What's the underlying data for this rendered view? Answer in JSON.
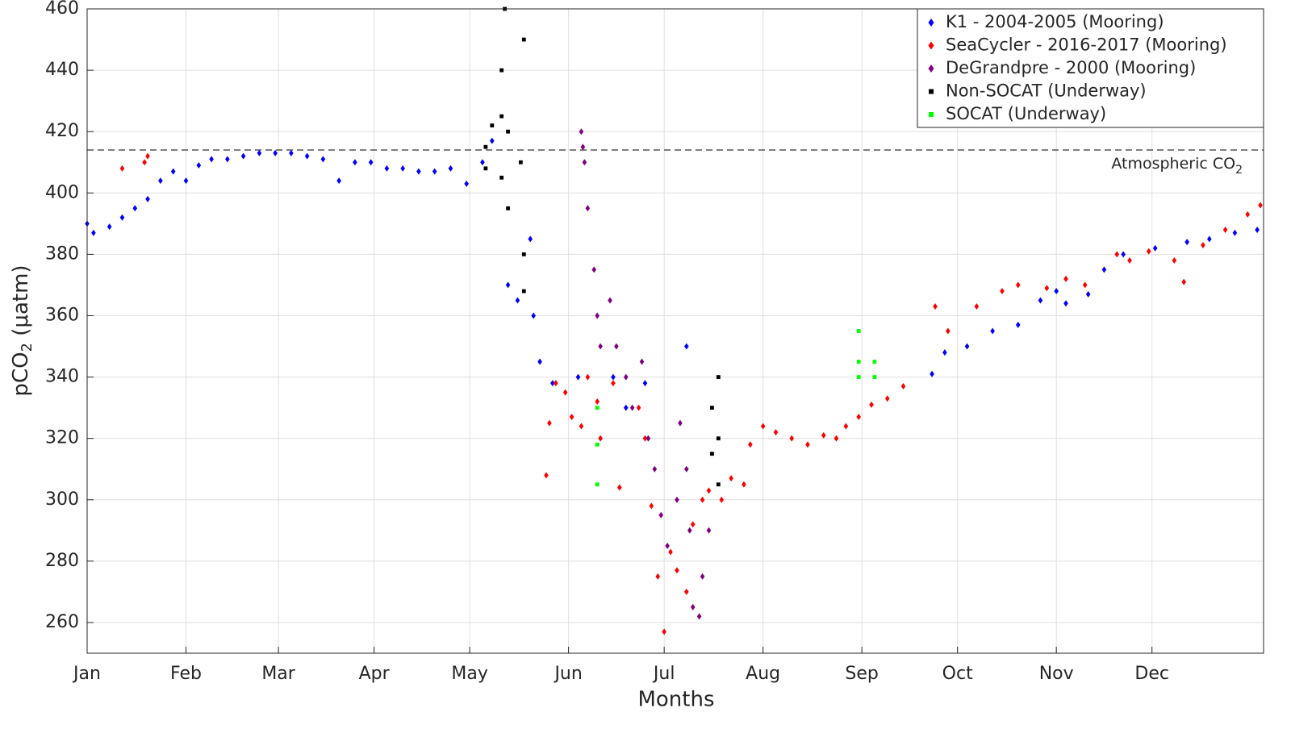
{
  "chart_data": {
    "type": "scatter",
    "x_label": "Months",
    "y_label": {
      "text": "pCO",
      "subscript": "2",
      "suffix": " (μatm)"
    },
    "xlim": [
      1,
      370
    ],
    "ylim": [
      250,
      460
    ],
    "xticks": [
      {
        "value": 1,
        "label": "Jan"
      },
      {
        "value": 32,
        "label": "Feb"
      },
      {
        "value": 61,
        "label": "Mar"
      },
      {
        "value": 91,
        "label": "Apr"
      },
      {
        "value": 121,
        "label": "May"
      },
      {
        "value": 152,
        "label": "Jun"
      },
      {
        "value": 182,
        "label": "Jul"
      },
      {
        "value": 213,
        "label": "Aug"
      },
      {
        "value": 244,
        "label": "Sep"
      },
      {
        "value": 274,
        "label": "Oct"
      },
      {
        "value": 305,
        "label": "Nov"
      },
      {
        "value": 335,
        "label": "Dec"
      }
    ],
    "yticks": [
      260,
      280,
      300,
      320,
      340,
      360,
      380,
      400,
      420,
      440,
      460
    ],
    "grid": true,
    "legend_position": "upper-right",
    "reference_line": {
      "value": 414,
      "text": "Atmospheric CO",
      "subscript": "2"
    },
    "series": [
      {
        "name": "K1 - 2004-2005 (Mooring)",
        "color": "#0000ff",
        "marker": "diamond",
        "x": [
          1,
          3,
          8,
          12,
          16,
          20,
          24,
          28,
          32,
          36,
          40,
          45,
          50,
          55,
          60,
          65,
          70,
          75,
          80,
          85,
          90,
          95,
          100,
          105,
          110,
          115,
          120,
          125,
          128,
          133,
          136,
          140,
          141,
          143,
          147,
          155,
          166,
          170,
          176,
          189,
          266,
          270,
          277,
          285,
          293,
          300,
          305,
          308,
          315,
          320,
          326,
          336,
          346,
          353,
          361,
          368
        ],
        "values": [
          390,
          387,
          389,
          392,
          395,
          398,
          404,
          407,
          404,
          409,
          411,
          411,
          412,
          413,
          413,
          413,
          412,
          411,
          404,
          410,
          410,
          408,
          408,
          407,
          407,
          408,
          403,
          410,
          417,
          370,
          365,
          385,
          360,
          345,
          338,
          340,
          340,
          330,
          338,
          350,
          341,
          348,
          350,
          355,
          357,
          365,
          368,
          364,
          367,
          375,
          380,
          382,
          384,
          385,
          387,
          388
        ]
      },
      {
        "name": "SeaCycler - 2016-2017 (Mooring)",
        "color": "#ff0000",
        "marker": "diamond",
        "x": [
          12,
          19,
          20,
          145,
          146,
          148,
          151,
          153,
          156,
          158,
          161,
          162,
          166,
          168,
          174,
          176,
          178,
          180,
          182,
          184,
          186,
          189,
          191,
          194,
          196,
          200,
          203,
          207,
          209,
          213,
          217,
          222,
          227,
          232,
          236,
          239,
          243,
          247,
          252,
          257,
          267,
          271,
          280,
          288,
          293,
          302,
          308,
          314,
          324,
          328,
          334,
          342,
          345,
          351,
          358,
          365,
          369
        ],
        "values": [
          408,
          410,
          412,
          308,
          325,
          338,
          335,
          327,
          324,
          340,
          332,
          320,
          338,
          304,
          330,
          320,
          298,
          275,
          257,
          283,
          277,
          270,
          292,
          300,
          303,
          300,
          307,
          305,
          318,
          324,
          322,
          320,
          318,
          321,
          320,
          324,
          327,
          331,
          333,
          337,
          363,
          355,
          363,
          368,
          370,
          369,
          372,
          370,
          380,
          378,
          381,
          378,
          371,
          383,
          388,
          393,
          396
        ]
      },
      {
        "name": "DeGrandpre - 2000 (Mooring)",
        "color": "#800080",
        "marker": "diamond",
        "x": [
          156,
          156.5,
          157,
          158,
          160,
          161,
          162,
          165,
          167,
          170,
          172,
          175,
          177,
          179,
          181,
          183,
          186,
          187,
          189,
          190,
          191,
          193,
          194,
          196
        ],
        "values": [
          420,
          415,
          410,
          395,
          375,
          360,
          350,
          365,
          350,
          340,
          330,
          345,
          320,
          310,
          295,
          285,
          300,
          325,
          310,
          290,
          265,
          262,
          275,
          290
        ]
      },
      {
        "name": "Non-SOCAT (Underway)",
        "color": "#000000",
        "marker": "square",
        "x": [
          126,
          126,
          128,
          131,
          131,
          131,
          132,
          133,
          133,
          137,
          138,
          138,
          138,
          197,
          197,
          199,
          199,
          199
        ],
        "values": [
          415,
          408,
          422,
          440,
          425,
          405,
          460,
          420,
          395,
          410,
          450,
          380,
          368,
          330,
          315,
          340,
          320,
          305
        ]
      },
      {
        "name": "SOCAT (Underway)",
        "color": "#00ff00",
        "marker": "square",
        "x": [
          161,
          161,
          161,
          243,
          243,
          243,
          248,
          248
        ],
        "values": [
          330,
          318,
          305,
          355,
          345,
          340,
          345,
          340
        ]
      }
    ]
  }
}
